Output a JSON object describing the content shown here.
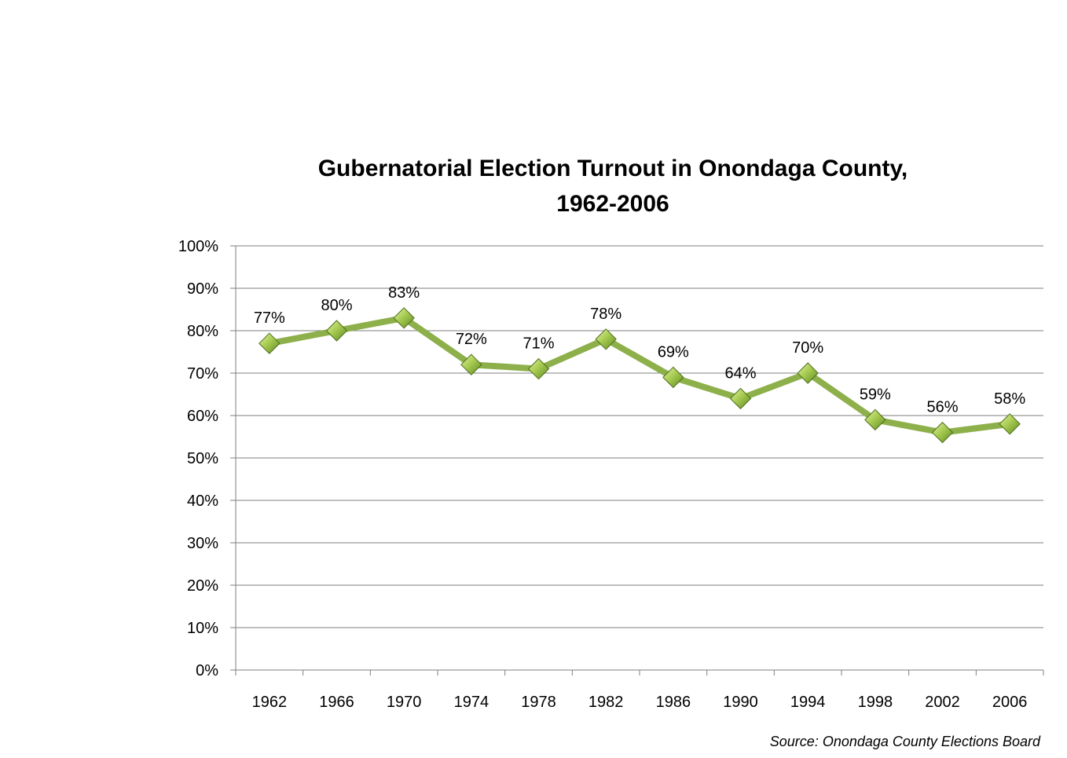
{
  "chart_data": {
    "type": "line",
    "title": "Gubernatorial Election Turnout in Onondaga County, 1962-2006",
    "title_lines": [
      "Gubernatorial Election Turnout in Onondaga County,",
      "1962-2006"
    ],
    "xlabel": "",
    "ylabel": "",
    "categories": [
      "1962",
      "1966",
      "1970",
      "1974",
      "1978",
      "1982",
      "1986",
      "1990",
      "1994",
      "1998",
      "2002",
      "2006"
    ],
    "series": [
      {
        "values": [
          77,
          80,
          83,
          72,
          71,
          78,
          69,
          64,
          70,
          59,
          56,
          58
        ],
        "data_labels": [
          "77%",
          "80%",
          "83%",
          "72%",
          "71%",
          "78%",
          "69%",
          "64%",
          "70%",
          "59%",
          "56%",
          "58%"
        ],
        "color": "#8db04a",
        "marker": "diamond"
      }
    ],
    "ylim": [
      0,
      100
    ],
    "y_ticks": [
      0,
      10,
      20,
      30,
      40,
      50,
      60,
      70,
      80,
      90,
      100
    ],
    "y_tick_labels": [
      "0%",
      "10%",
      "20%",
      "30%",
      "40%",
      "50%",
      "60%",
      "70%",
      "80%",
      "90%",
      "100%"
    ],
    "grid": true,
    "legend": "none",
    "colors": {
      "line": "#8db04a",
      "marker_light": "#c8e07a",
      "marker_dark": "#5f8a22",
      "marker_edge": "#4d6e1c",
      "gridline": "#7f7f7f",
      "axis": "#7f7f7f"
    }
  },
  "source_note": "Source: Onondaga County  Elections Board"
}
